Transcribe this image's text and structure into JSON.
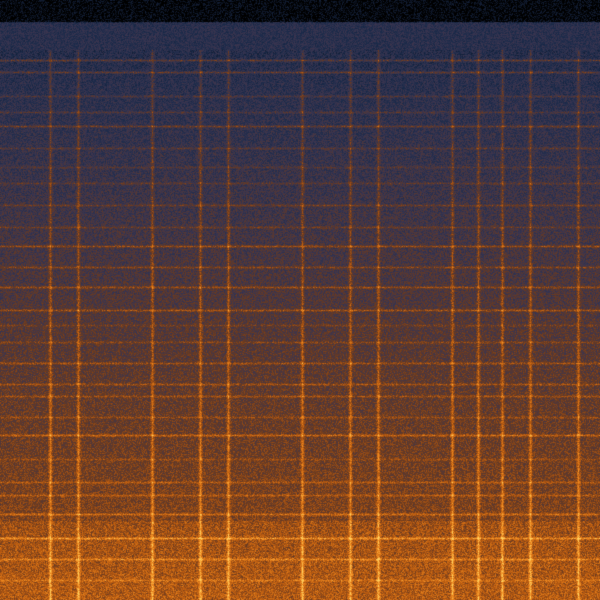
{
  "spectrogram": {
    "colormap": [
      "#000000",
      "#1a2a4a",
      "#3a3550",
      "#6a3a20",
      "#b85a10",
      "#f08a20",
      "#ffd060"
    ]
  }
}
